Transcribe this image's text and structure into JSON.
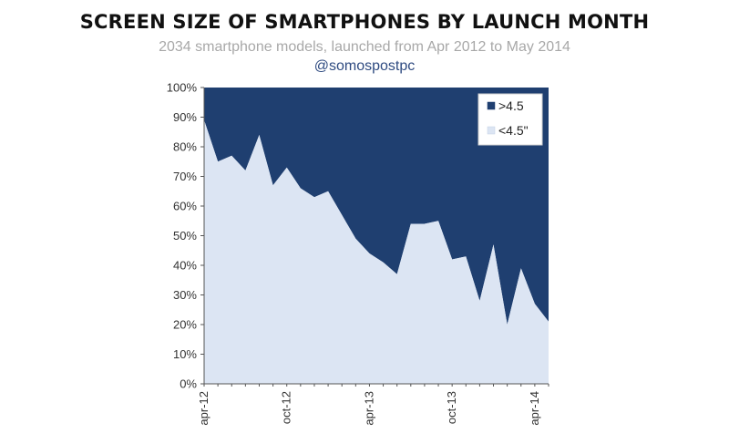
{
  "header": {
    "title": "SCREEN SIZE OF SMARTPHONES BY LAUNCH MONTH",
    "subtitle": "2034 smartphone models, launched from Apr 2012 to May 2014",
    "handle": "@somospostpc"
  },
  "chart_data": {
    "type": "area",
    "stacked": true,
    "percent": true,
    "title": "SCREEN SIZE OF SMARTPHONES BY LAUNCH MONTH",
    "subtitle": "2034 smartphone models, launched from Apr 2012 to May 2014",
    "x": [
      "apr-12",
      "may-12",
      "jun-12",
      "jul-12",
      "aug-12",
      "sep-12",
      "oct-12",
      "nov-12",
      "dec-12",
      "jan-13",
      "feb-13",
      "mar-13",
      "apr-13",
      "may-13",
      "jun-13",
      "jul-13",
      "aug-13",
      "sep-13",
      "oct-13",
      "nov-13",
      "dec-13",
      "jan-14",
      "feb-14",
      "mar-14",
      "apr-14",
      "may-14"
    ],
    "x_tick_labels": [
      "apr-12",
      "oct-12",
      "apr-13",
      "oct-13",
      "apr-14"
    ],
    "x_tick_indices": [
      0,
      6,
      12,
      18,
      24
    ],
    "series": [
      {
        "name": "<4.5\"",
        "color": "#dce5f3",
        "values": [
          89,
          75,
          77,
          72,
          84,
          67,
          73,
          66,
          63,
          65,
          57,
          49,
          44,
          41,
          37,
          54,
          54,
          55,
          42,
          43,
          28,
          47,
          20,
          39,
          27,
          21
        ]
      },
      {
        "name": ">4.5",
        "color": "#1f3f70",
        "values": [
          11,
          25,
          23,
          28,
          16,
          33,
          27,
          34,
          37,
          35,
          43,
          51,
          56,
          59,
          63,
          46,
          46,
          45,
          58,
          57,
          72,
          53,
          80,
          61,
          73,
          79
        ]
      }
    ],
    "y_tick_labels": [
      "0%",
      "10%",
      "20%",
      "30%",
      "40%",
      "50%",
      "60%",
      "70%",
      "80%",
      "90%",
      "100%"
    ],
    "ylim": [
      0,
      100
    ],
    "grid": false,
    "legend": {
      "placement": "top-right",
      "entries": [
        {
          "label": ">4.5",
          "color": "#1f3f70"
        },
        {
          "label": "<4.5\"",
          "color": "#dce5f3"
        }
      ]
    },
    "xlabel": "",
    "ylabel": ""
  }
}
